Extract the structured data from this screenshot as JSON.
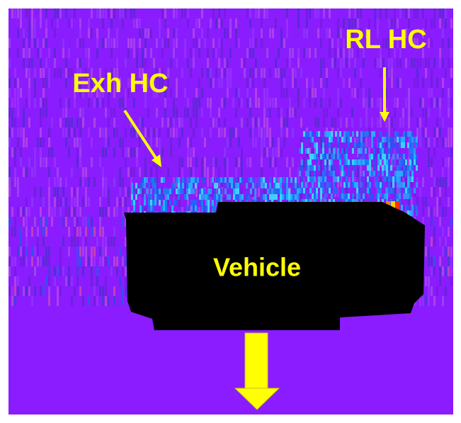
{
  "labels": {
    "rl_hc": "RL HC",
    "exh_hc": "Exh HC",
    "vehicle": "Vehicle"
  }
}
